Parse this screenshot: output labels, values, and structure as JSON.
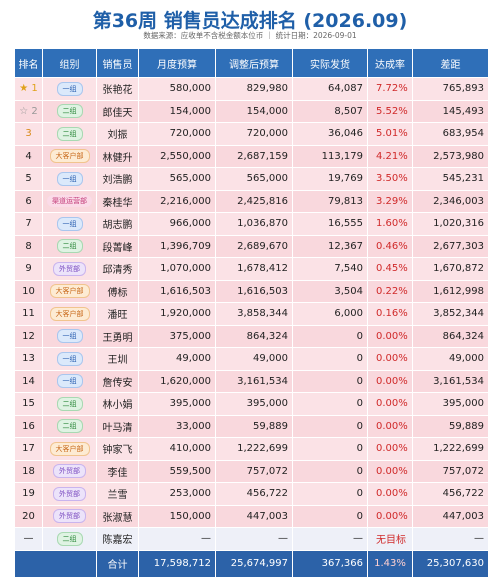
{
  "header": {
    "title": "第36周 销售员达成排名 (2026.09)",
    "subtitle": "数据来源：应收单不含税金额本位币 ｜ 统计日期：2026-09-01"
  },
  "table": {
    "columns": [
      "排名",
      "组别",
      "销售员",
      "月度预算",
      "调整后预算",
      "实际发货",
      "达成率",
      "差距"
    ],
    "rows": [
      {
        "rank": "★ 1",
        "group": "一组",
        "badge": "blue",
        "name": "张艳花",
        "budget": "580,000",
        "adjusted": "829,980",
        "actual": "64,087",
        "rate": "7.72%",
        "gap": "765,893"
      },
      {
        "rank": "☆ 2",
        "group": "二组",
        "badge": "green",
        "name": "郎佳天",
        "budget": "154,000",
        "adjusted": "154,000",
        "actual": "8,507",
        "rate": "5.52%",
        "gap": "145,493"
      },
      {
        "rank": "3",
        "group": "二组",
        "badge": "green",
        "name": "刘振",
        "budget": "720,000",
        "adjusted": "720,000",
        "actual": "36,046",
        "rate": "5.01%",
        "gap": "683,954"
      },
      {
        "rank": "4",
        "group": "大客户部",
        "badge": "orange",
        "name": "林健升",
        "budget": "2,550,000",
        "adjusted": "2,687,159",
        "actual": "113,179",
        "rate": "4.21%",
        "gap": "2,573,980"
      },
      {
        "rank": "5",
        "group": "一组",
        "badge": "blue",
        "name": "刘浩鹏",
        "budget": "565,000",
        "adjusted": "565,000",
        "actual": "19,769",
        "rate": "3.50%",
        "gap": "545,231"
      },
      {
        "rank": "6",
        "group": "渠道运营部",
        "badge": "pink",
        "name": "秦桂华",
        "budget": "2,216,000",
        "adjusted": "2,425,816",
        "actual": "79,813",
        "rate": "3.29%",
        "gap": "2,346,003"
      },
      {
        "rank": "7",
        "group": "一组",
        "badge": "blue",
        "name": "胡志鹏",
        "budget": "966,000",
        "adjusted": "1,036,870",
        "actual": "16,555",
        "rate": "1.60%",
        "gap": "1,020,316"
      },
      {
        "rank": "8",
        "group": "二组",
        "badge": "green",
        "name": "段菁峰",
        "budget": "1,396,709",
        "adjusted": "2,689,670",
        "actual": "12,367",
        "rate": "0.46%",
        "gap": "2,677,303"
      },
      {
        "rank": "9",
        "group": "外贸部",
        "badge": "purple",
        "name": "邱清秀",
        "budget": "1,070,000",
        "adjusted": "1,678,412",
        "actual": "7,540",
        "rate": "0.45%",
        "gap": "1,670,872"
      },
      {
        "rank": "10",
        "group": "大客户部",
        "badge": "orange",
        "name": "傅标",
        "budget": "1,616,503",
        "adjusted": "1,616,503",
        "actual": "3,504",
        "rate": "0.22%",
        "gap": "1,612,998"
      },
      {
        "rank": "11",
        "group": "大客户部",
        "badge": "orange",
        "name": "潘旺",
        "budget": "1,920,000",
        "adjusted": "3,858,344",
        "actual": "6,000",
        "rate": "0.16%",
        "gap": "3,852,344"
      },
      {
        "rank": "12",
        "group": "一组",
        "badge": "blue",
        "name": "王勇明",
        "budget": "375,000",
        "adjusted": "864,324",
        "actual": "0",
        "rate": "0.00%",
        "gap": "864,324"
      },
      {
        "rank": "13",
        "group": "一组",
        "badge": "blue",
        "name": "王圳",
        "budget": "49,000",
        "adjusted": "49,000",
        "actual": "0",
        "rate": "0.00%",
        "gap": "49,000"
      },
      {
        "rank": "14",
        "group": "一组",
        "badge": "blue",
        "name": "詹传安",
        "budget": "1,620,000",
        "adjusted": "3,161,534",
        "actual": "0",
        "rate": "0.00%",
        "gap": "3,161,534"
      },
      {
        "rank": "15",
        "group": "二组",
        "badge": "green",
        "name": "林小娟",
        "budget": "395,000",
        "adjusted": "395,000",
        "actual": "0",
        "rate": "0.00%",
        "gap": "395,000"
      },
      {
        "rank": "16",
        "group": "二组",
        "badge": "green",
        "name": "叶马清",
        "budget": "33,000",
        "adjusted": "59,889",
        "actual": "0",
        "rate": "0.00%",
        "gap": "59,889"
      },
      {
        "rank": "17",
        "group": "大客户部",
        "badge": "orange",
        "name": "钟家飞",
        "budget": "410,000",
        "adjusted": "1,222,699",
        "actual": "0",
        "rate": "0.00%",
        "gap": "1,222,699"
      },
      {
        "rank": "18",
        "group": "外贸部",
        "badge": "purple",
        "name": "李佳",
        "budget": "559,500",
        "adjusted": "757,072",
        "actual": "0",
        "rate": "0.00%",
        "gap": "757,072"
      },
      {
        "rank": "19",
        "group": "外贸部",
        "badge": "purple",
        "name": "兰雪",
        "budget": "253,000",
        "adjusted": "456,722",
        "actual": "0",
        "rate": "0.00%",
        "gap": "456,722"
      },
      {
        "rank": "20",
        "group": "外贸部",
        "badge": "purple",
        "name": "张淑慧",
        "budget": "150,000",
        "adjusted": "447,003",
        "actual": "0",
        "rate": "0.00%",
        "gap": "447,003"
      },
      {
        "rank": "—",
        "group": "二组",
        "badge": "green",
        "name": "陈嘉宏",
        "budget": "—",
        "adjusted": "—",
        "actual": "—",
        "rate": "无目标",
        "gap": "—"
      }
    ],
    "total": {
      "label": "合计",
      "budget": "17,598,712",
      "adjusted": "25,674,997",
      "actual": "367,366",
      "rate": "1.43%",
      "gap": "25,307,630"
    }
  }
}
